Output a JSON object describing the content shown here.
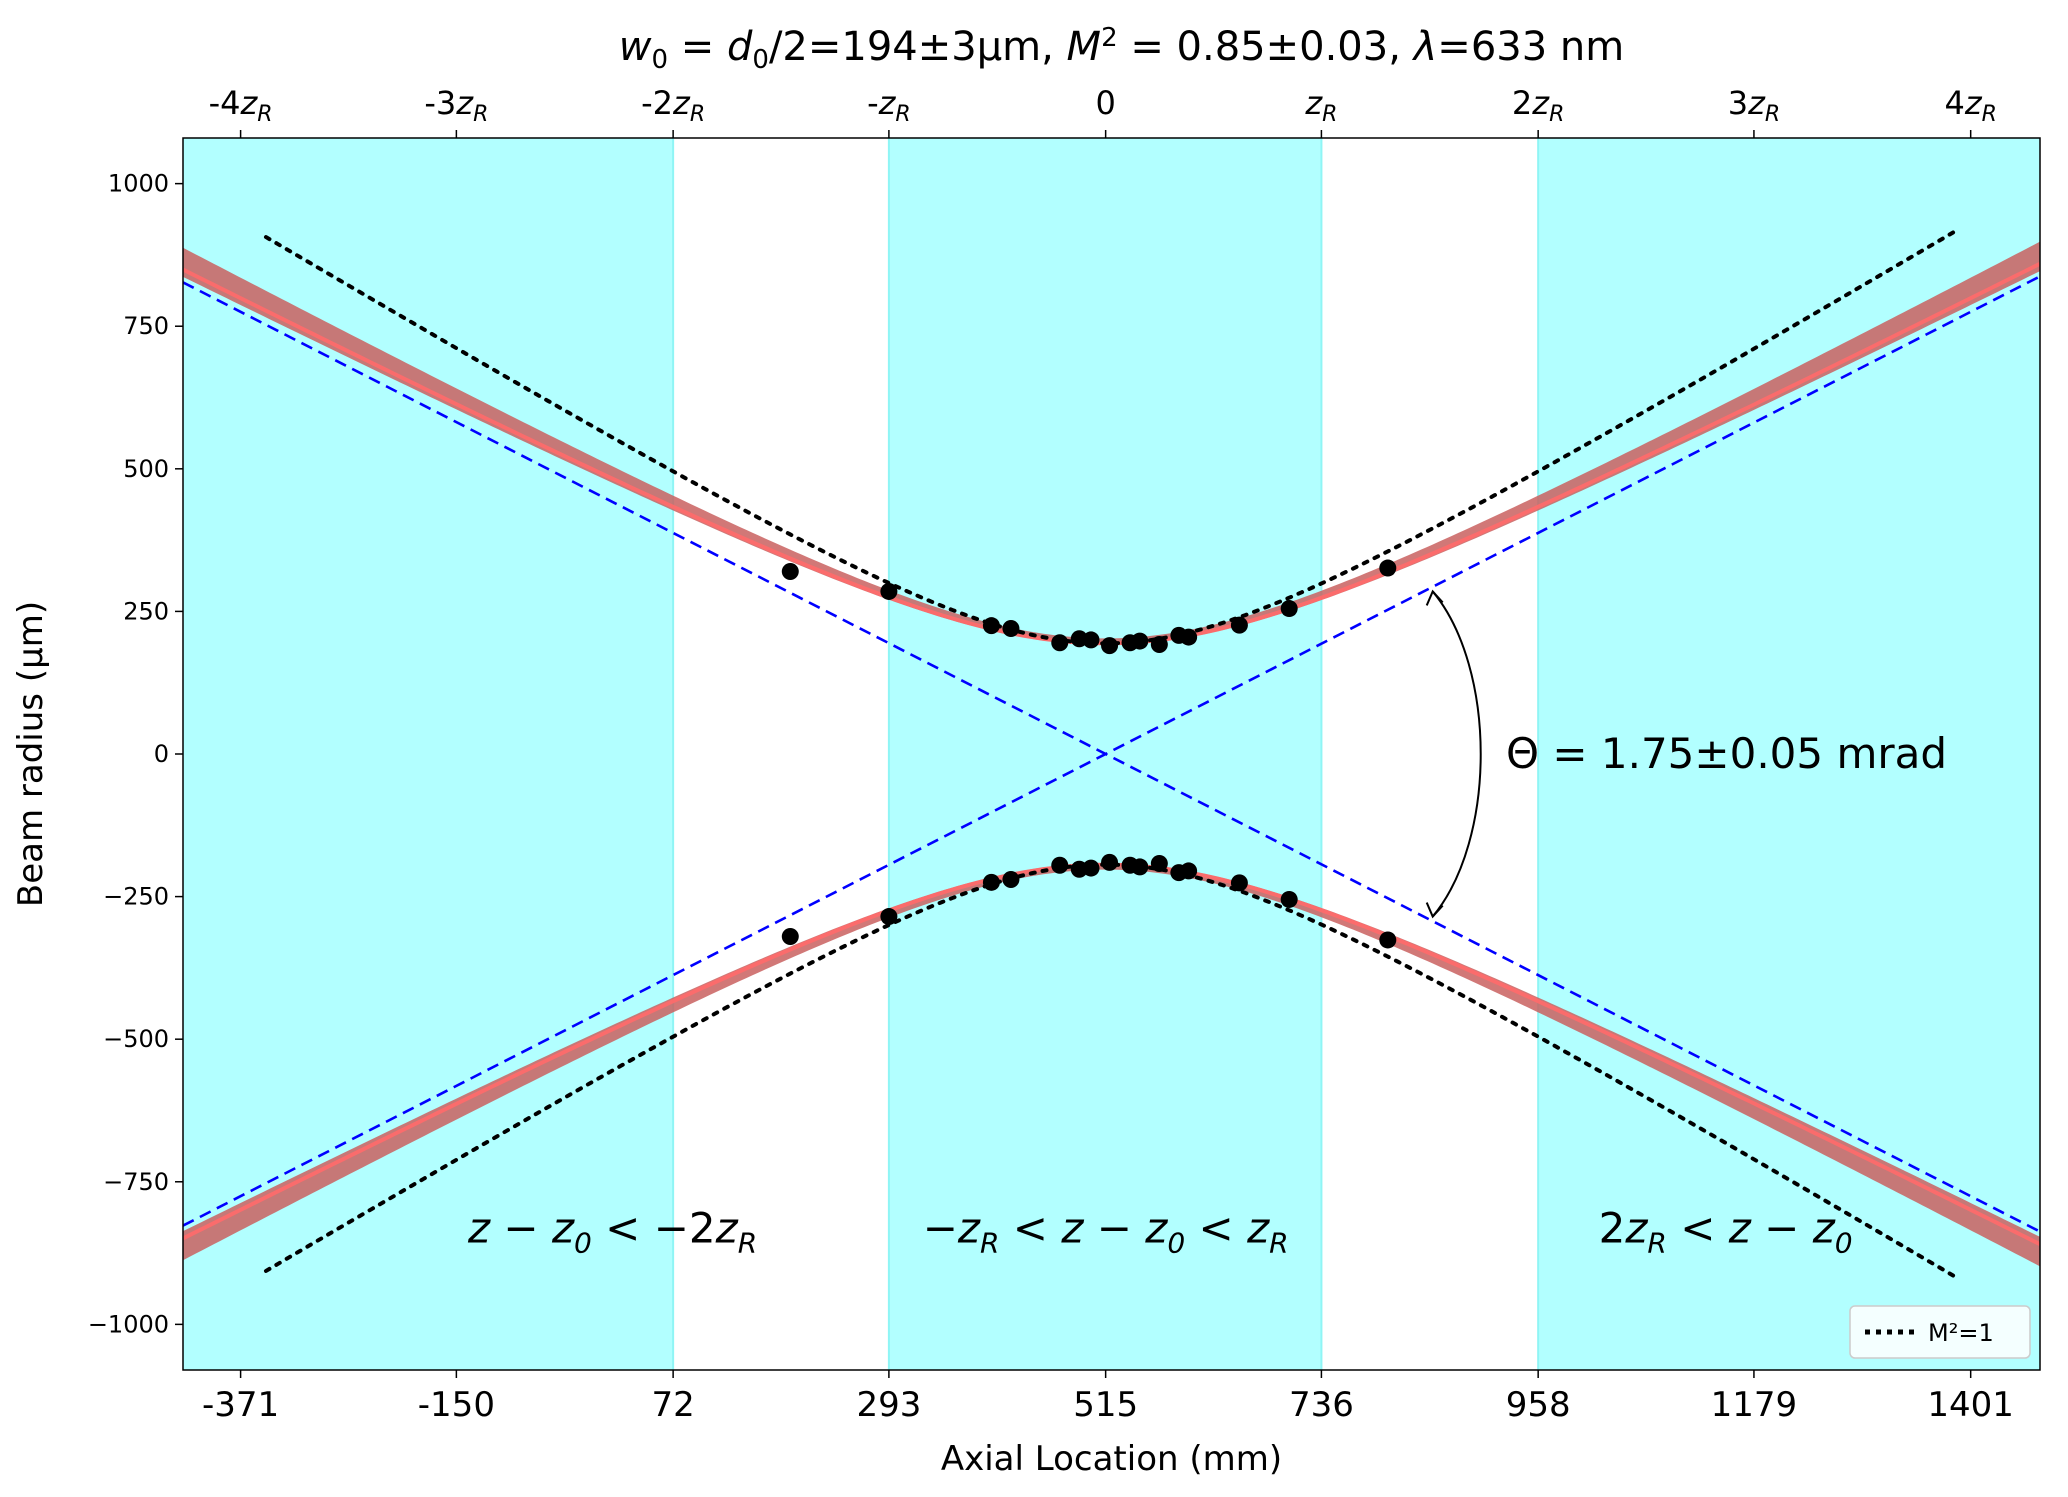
{
  "chart_data": {
    "type": "scatter",
    "title": {
      "w0": "w",
      "w0_sub": "0",
      "eq1": " = ",
      "d0": "d",
      "d0_sub": "0",
      "value": "/2=194±3µm,  ",
      "m2": "M",
      "m2_sup": "2",
      "m2_value": " = 0.85±0.03,  ",
      "lambda": "λ",
      "lambda_value": "=633 nm"
    },
    "xlabel": "Axial Location (mm)",
    "ylabel": "Beam radius (µm)",
    "xlim": [
      -430,
      1472
    ],
    "ylim": [
      -1080,
      1080
    ],
    "x_ticks": [
      -371,
      -150,
      72,
      293,
      515,
      736,
      958,
      1179,
      1401
    ],
    "x_tick_labels": [
      "-371",
      "-150",
      "72",
      "293",
      "515",
      "736",
      "958",
      "1179",
      "1401"
    ],
    "y_ticks": [
      1000,
      750,
      500,
      250,
      0,
      -250,
      -500,
      -750,
      -1000
    ],
    "y_tick_labels": [
      "1000",
      "750",
      "500",
      "250",
      "0",
      "−250",
      "−500",
      "−750",
      "−1000"
    ],
    "top_ticks": [
      {
        "value": -371,
        "pre": "-4",
        "z": "z",
        "sub": "R"
      },
      {
        "value": -150,
        "pre": "-3",
        "z": "z",
        "sub": "R"
      },
      {
        "value": 72,
        "pre": "-2",
        "z": "z",
        "sub": "R"
      },
      {
        "value": 293,
        "pre": "-",
        "z": "z",
        "sub": "R"
      },
      {
        "value": 515,
        "pre": "0",
        "z": "",
        "sub": ""
      },
      {
        "value": 736,
        "pre": "",
        "z": "z",
        "sub": "R"
      },
      {
        "value": 958,
        "pre": "2",
        "z": "z",
        "sub": "R"
      },
      {
        "value": 1179,
        "pre": "3",
        "z": "z",
        "sub": "R"
      },
      {
        "value": 1401,
        "pre": "4",
        "z": "z",
        "sub": "R"
      }
    ],
    "waist_z0": 515,
    "rayleigh_zR": 221.5,
    "w0": 194,
    "w0_uncertainty": 3,
    "m2": 0.85,
    "theta_mrad": 1.75,
    "shaded_regions": [
      [
        -430,
        72
      ],
      [
        293,
        736
      ],
      [
        958,
        1472
      ]
    ],
    "region_labels": [
      {
        "x": 10,
        "y": -800,
        "parts": [
          [
            "z",
            "i"
          ],
          [
            " − ",
            "n"
          ],
          [
            "z",
            "i"
          ],
          [
            "0",
            "sub"
          ],
          [
            " < −2",
            "n"
          ],
          [
            "z",
            "i"
          ],
          [
            "R",
            "sub"
          ]
        ]
      },
      {
        "x": 515,
        "y": -800,
        "parts": [
          [
            "−",
            "n"
          ],
          [
            "z",
            "i"
          ],
          [
            "R",
            "sub"
          ],
          [
            " < ",
            "n"
          ],
          [
            "z",
            "i"
          ],
          [
            " − ",
            "n"
          ],
          [
            "z",
            "i"
          ],
          [
            "0",
            "sub"
          ],
          [
            " < ",
            "n"
          ],
          [
            "z",
            "i"
          ],
          [
            "R",
            "sub"
          ]
        ]
      },
      {
        "x": 1150,
        "y": -800,
        "parts": [
          [
            "2",
            "n"
          ],
          [
            "z",
            "i"
          ],
          [
            "R",
            "sub"
          ],
          [
            " < ",
            "n"
          ],
          [
            "z",
            "i"
          ],
          [
            " − ",
            "n"
          ],
          [
            "z",
            "i"
          ],
          [
            "0",
            "sub"
          ]
        ]
      }
    ],
    "theta_label": "Θ  = 1.75±0.05 mrad",
    "measurements": [
      {
        "x": 192,
        "r": 320
      },
      {
        "x": 293,
        "r": 285
      },
      {
        "x": 398,
        "r": 225
      },
      {
        "x": 418,
        "r": 220
      },
      {
        "x": 468,
        "r": 195
      },
      {
        "x": 488,
        "r": 202
      },
      {
        "x": 500,
        "r": 200
      },
      {
        "x": 519,
        "r": 190
      },
      {
        "x": 540,
        "r": 195
      },
      {
        "x": 550,
        "r": 198
      },
      {
        "x": 570,
        "r": 192
      },
      {
        "x": 590,
        "r": 208
      },
      {
        "x": 600,
        "r": 205
      },
      {
        "x": 652,
        "r": 226
      },
      {
        "x": 703,
        "r": 255
      },
      {
        "x": 804,
        "r": 326
      }
    ],
    "legend": {
      "label": "M²=1",
      "position": "lower-right"
    },
    "colors": {
      "shade": "#b2ffff",
      "fit": "#ff6a6a",
      "fit_band": "#c9605f",
      "asymptote": "#0000ff",
      "ideal": "#000000",
      "points": "#000000"
    }
  }
}
